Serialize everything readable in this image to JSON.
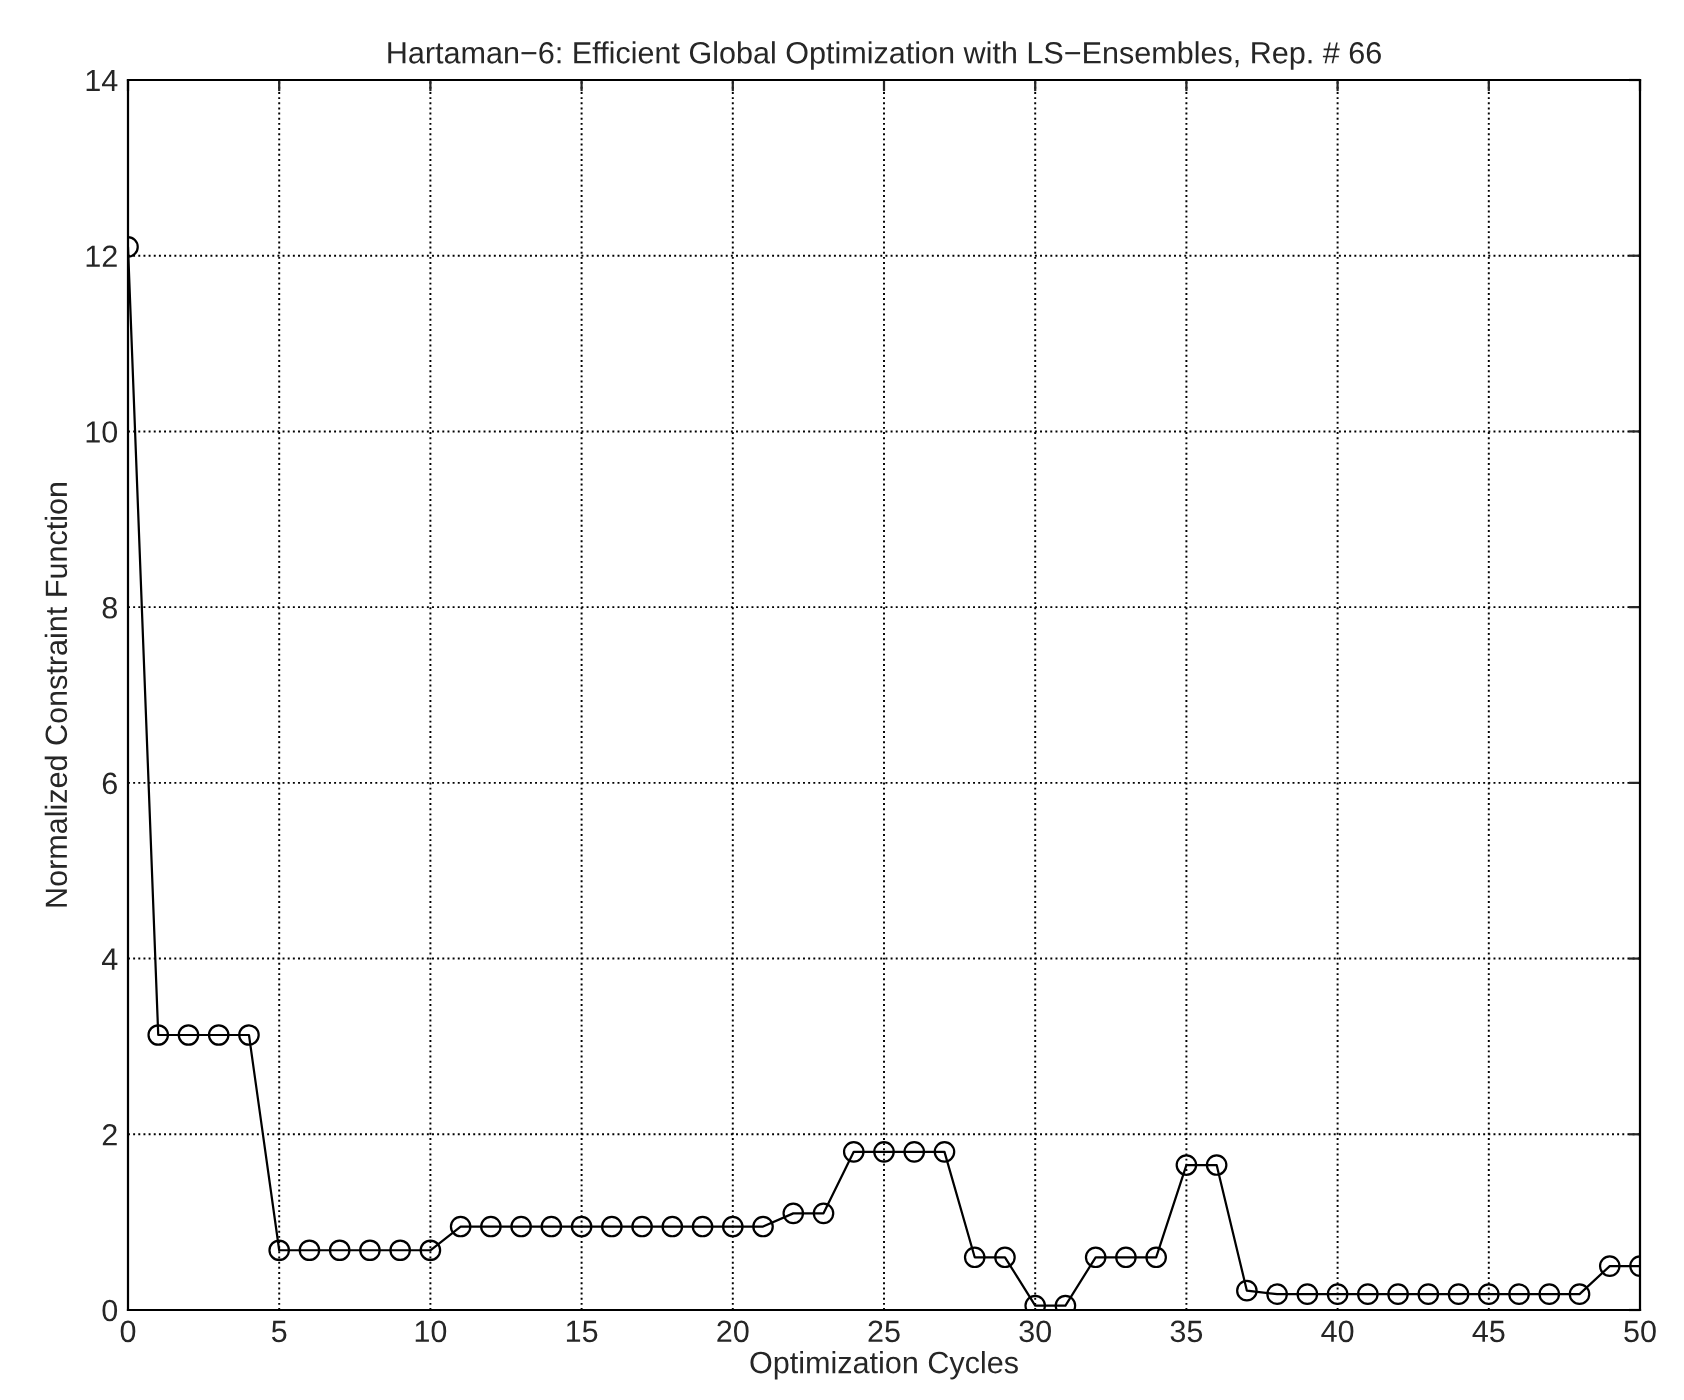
{
  "chart_data": {
    "type": "line",
    "title": "Hartaman−6: Efficient Global Optimization with LS−Ensembles, Rep. # 66",
    "xlabel": "Optimization Cycles",
    "ylabel": "Normalized Constraint Function",
    "x": [
      0,
      1,
      2,
      3,
      4,
      5,
      6,
      7,
      8,
      9,
      10,
      11,
      12,
      13,
      14,
      15,
      16,
      17,
      18,
      19,
      20,
      21,
      22,
      23,
      24,
      25,
      26,
      27,
      28,
      29,
      30,
      31,
      32,
      33,
      34,
      35,
      36,
      37,
      38,
      39,
      40,
      41,
      42,
      43,
      44,
      45,
      46,
      47,
      48,
      49,
      50
    ],
    "series": [
      {
        "color": "#000000",
        "values": [
          12.1,
          3.13,
          3.13,
          3.13,
          3.13,
          0.68,
          0.68,
          0.68,
          0.68,
          0.68,
          0.68,
          0.95,
          0.95,
          0.95,
          0.95,
          0.95,
          0.95,
          0.95,
          0.95,
          0.95,
          0.95,
          0.95,
          1.1,
          1.1,
          1.8,
          1.8,
          1.8,
          1.8,
          0.6,
          0.6,
          0.05,
          0.05,
          0.6,
          0.6,
          0.6,
          1.65,
          1.65,
          0.22,
          0.18,
          0.18,
          0.18,
          0.18,
          0.18,
          0.18,
          0.18,
          0.18,
          0.18,
          0.18,
          0.18,
          0.5,
          0.5
        ]
      }
    ],
    "xlim": [
      0,
      50
    ],
    "xticks": [
      0,
      5,
      10,
      15,
      20,
      25,
      30,
      35,
      40,
      45,
      50
    ],
    "ylim": [
      0,
      14
    ],
    "yticks": [
      0,
      2,
      4,
      6,
      8,
      10,
      12,
      14
    ],
    "grid": true,
    "marker": "circle",
    "line_style": "solid",
    "legend": false
  }
}
